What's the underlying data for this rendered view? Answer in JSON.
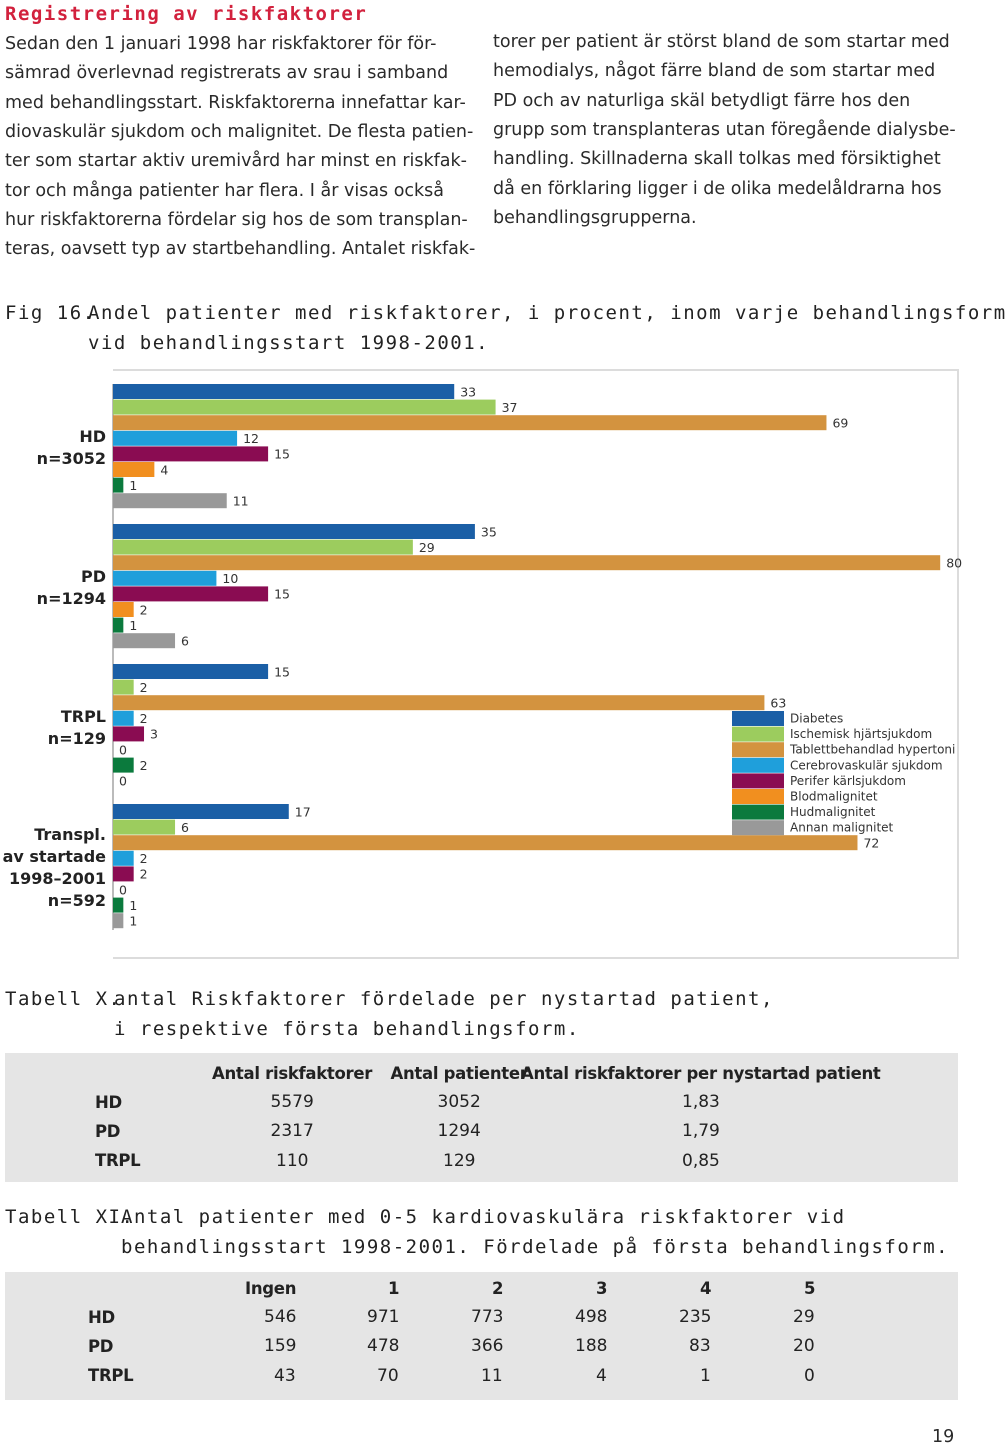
{
  "heading": "Registrering av riskfaktorer",
  "body": {
    "left_lines": [
      "Sedan den 1 januari 1998 har riskfaktorer för för-",
      "sämrad överlevnad registrerats av srau i samband",
      "med behandlingsstart. Riskfaktorerna innefattar kar-",
      "diovaskulär sjukdom och malignitet. De flesta patien-",
      "ter som startar aktiv uremivård har minst en riskfak-",
      "tor och många patienter har flera. I år visas också",
      "hur riskfaktorerna fördelar sig hos de som transplan-",
      "teras, oavsett typ av startbehandling. Antalet riskfak-"
    ],
    "right_lines": [
      "torer per patient är störst bland de som startar med",
      "hemodialys, något färre bland de som startar med",
      "PD och av naturliga skäl betydligt färre hos den",
      "grupp som transplanteras utan föregående dialysbe-",
      "handling. Skillnaderna skall tolkas med försiktighet",
      "då en förklaring ligger i de olika medelåldrarna hos",
      "behandlingsgrupperna."
    ]
  },
  "figure_caption": {
    "label": "Fig 16.",
    "lines": [
      "Andel patienter med riskfaktorer, i procent, inom varje behandlingsform",
      "vid behandlingsstart 1998-2001."
    ]
  },
  "chart_data": {
    "type": "bar",
    "orientation": "horizontal",
    "categories": [
      "HD\nn=3052",
      "PD\nn=1294",
      "TRPL\nn=129",
      "Transpl.\nav startade\n1998–2001\nn=592"
    ],
    "series": [
      {
        "name": "Diabetes",
        "color": "#1b5fa6",
        "values": [
          33,
          35,
          15,
          17
        ]
      },
      {
        "name": "Ischemisk hjärtsjukdom",
        "color": "#9ccc5e",
        "values": [
          37,
          29,
          2,
          6
        ]
      },
      {
        "name": "Tablettbehandlad hypertoni",
        "color": "#d3933f",
        "values": [
          69,
          80,
          63,
          72
        ]
      },
      {
        "name": "Cerebrovaskulär sjukdom",
        "color": "#1f9fdb",
        "values": [
          12,
          10,
          2,
          2
        ]
      },
      {
        "name": "Perifer kärlsjukdom",
        "color": "#8a0c52",
        "values": [
          15,
          15,
          3,
          2
        ]
      },
      {
        "name": "Blodmalignitet",
        "color": "#f18f1f",
        "values": [
          4,
          2,
          0,
          0
        ]
      },
      {
        "name": "Hudmalignitet",
        "color": "#0b7a3d",
        "values": [
          1,
          1,
          2,
          1
        ]
      },
      {
        "name": "Annan malignitet",
        "color": "#999999",
        "values": [
          11,
          6,
          0,
          1
        ]
      }
    ],
    "legend": "inside-right"
  },
  "table_x": {
    "label": "Tabell X.",
    "lines": [
      "antal Riskfaktorer fördelade per nystartad patient,",
      "i respektive första behandlingsform."
    ],
    "columns": [
      "Antal riskfaktorer",
      "Antal patienter",
      "Antal riskfaktorer per nystartad patient"
    ],
    "rows": [
      {
        "label": "HD",
        "cells": [
          "5579",
          "3052",
          "1,83"
        ]
      },
      {
        "label": "PD",
        "cells": [
          "2317",
          "1294",
          "1,79"
        ]
      },
      {
        "label": "TRPL",
        "cells": [
          "110",
          "129",
          "0,85"
        ]
      }
    ]
  },
  "table_xi": {
    "label": "Tabell XI.",
    "lines": [
      "Antal patienter med 0-5 kardiovaskulära riskfaktorer vid",
      "behandlingsstart 1998-2001. Fördelade på första behandlingsform."
    ],
    "columns": [
      "Ingen",
      "1",
      "2",
      "3",
      "4",
      "5"
    ],
    "rows": [
      {
        "label": "HD",
        "cells": [
          "546",
          "971",
          "773",
          "498",
          "235",
          "29"
        ]
      },
      {
        "label": "PD",
        "cells": [
          "159",
          "478",
          "366",
          "188",
          "83",
          "20"
        ]
      },
      {
        "label": "TRPL",
        "cells": [
          "43",
          "70",
          "11",
          "4",
          "1",
          "0"
        ]
      }
    ]
  },
  "page_number": "19"
}
